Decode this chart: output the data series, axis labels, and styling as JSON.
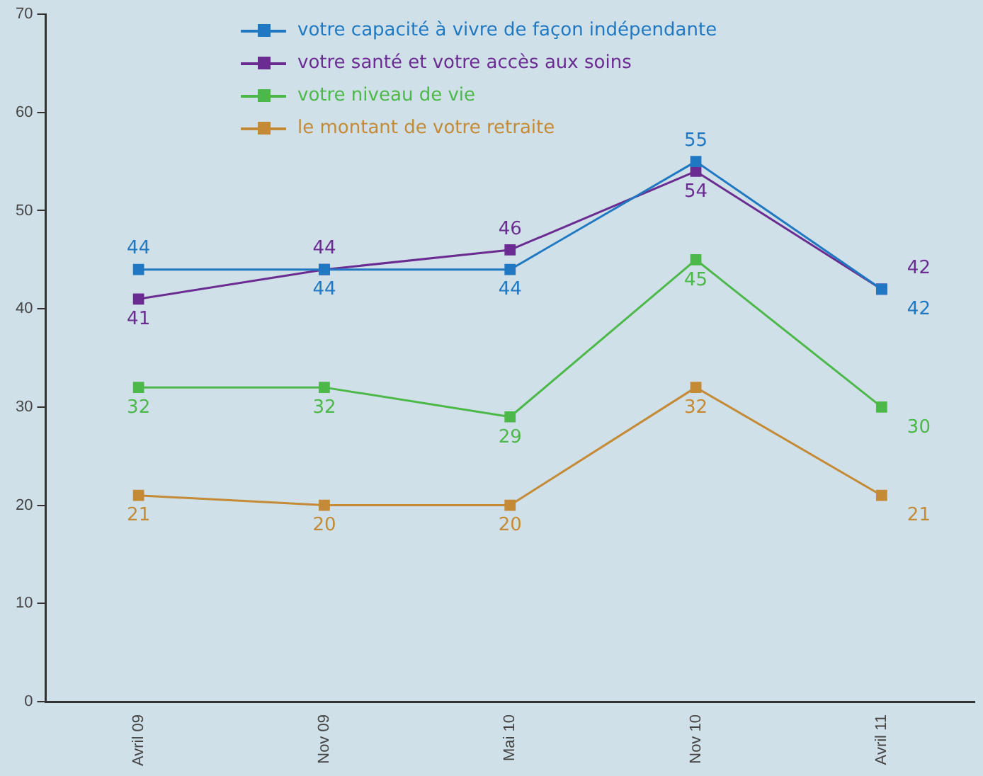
{
  "chart_data": {
    "type": "line",
    "categories": [
      "Avril 09",
      "Nov 09",
      "Mai 10",
      "Nov 10",
      "Avril 11"
    ],
    "series": [
      {
        "name": "votre capacité à vivre de façon indépendante",
        "color": "#1f78c1",
        "values": [
          44,
          44,
          44,
          55,
          42
        ]
      },
      {
        "name": "votre santé et votre accès aux soins",
        "color": "#6a2c91",
        "values": [
          41,
          44,
          46,
          54,
          42
        ]
      },
      {
        "name": "votre niveau de vie",
        "color": "#4cb84a",
        "values": [
          32,
          32,
          29,
          45,
          30
        ]
      },
      {
        "name": "le montant de votre retraite",
        "color": "#c48a35",
        "values": [
          21,
          20,
          20,
          32,
          21
        ]
      }
    ],
    "ylim": [
      0,
      70
    ],
    "yticks": [
      0,
      10,
      20,
      30,
      40,
      50,
      60,
      70
    ],
    "grid": false,
    "legend": "top",
    "marker": "square",
    "line_style": "solid",
    "data_labels": true
  }
}
